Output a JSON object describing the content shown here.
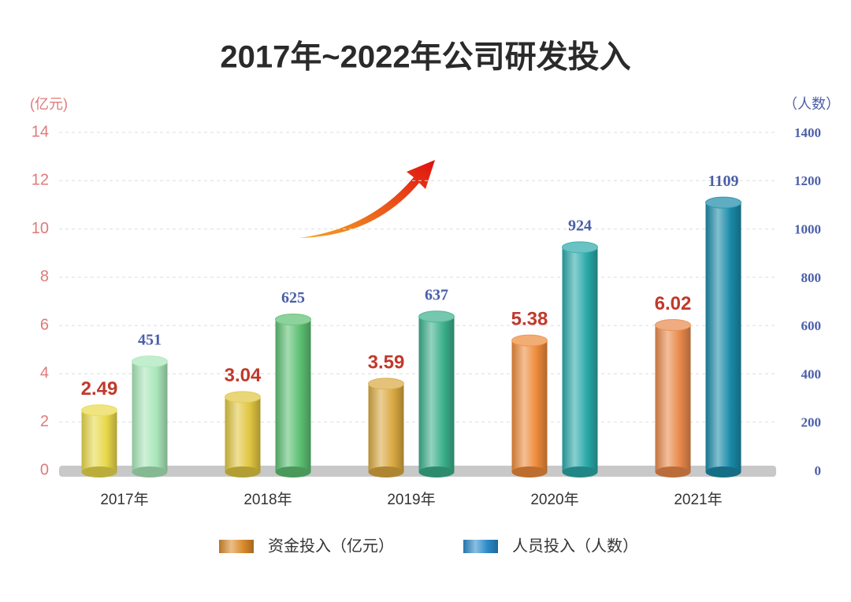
{
  "chart_data": {
    "type": "bar",
    "title": "2017年~2022年公司研发投入",
    "y_label": "(亿元)",
    "y2_label": "（人数）",
    "categories": [
      "2017年",
      "2018年",
      "2019年",
      "2020年",
      "2021年"
    ],
    "series": [
      {
        "name": "资金投入（亿元）",
        "color": "#d98a2a",
        "colors": [
          "#e8d84a",
          "#e0c540",
          "#d9a840",
          "#ec8a3a",
          "#e8884a"
        ],
        "label_color": "#c0392b",
        "values": [
          2.49,
          3.04,
          3.59,
          5.38,
          6.02
        ]
      },
      {
        "name": "人员投入（人数）",
        "color": "#2a8ac8",
        "axis": "y2",
        "colors": [
          "#a8e6b8",
          "#5cbf72",
          "#3aaf8a",
          "#2aa8a8",
          "#1a8aa8"
        ],
        "label_color": "#4a5fa8",
        "values": [
          451,
          625,
          637,
          924,
          1109
        ]
      }
    ],
    "ylim": [
      0,
      14
    ],
    "yticks": [
      0,
      2,
      4,
      6,
      8,
      10,
      12,
      14
    ],
    "y2lim": [
      0,
      1400
    ],
    "y2ticks": [
      0,
      200,
      400,
      600,
      800,
      1000,
      1200,
      1400
    ],
    "grid": true
  }
}
